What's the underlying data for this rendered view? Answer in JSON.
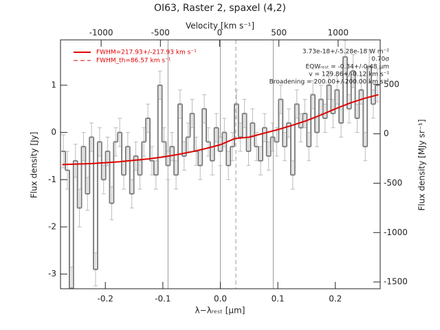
{
  "chart_data": {
    "type": "step",
    "title": "OI63, Raster 2, spaxel (4,2)",
    "xlabel": "λ−λᵣₑₛₜ [μm]",
    "ylabel": "Flux density [Jy]",
    "y2label": "Flux density [MJy sr⁻¹]",
    "x2label": "Velocity [km s⁻¹]",
    "xlim": [
      -0.278,
      0.278
    ],
    "ylim": [
      -3.31,
      1.96
    ],
    "y2lim": [
      -1569,
      951
    ],
    "x2lim": [
      -1343,
      1355
    ],
    "xticks": [
      -0.2,
      -0.1,
      {
        "value": 0,
        "label": "0.0"
      },
      0.1,
      0.2
    ],
    "yticks": [
      -3,
      -2,
      -1,
      0,
      1
    ],
    "y2ticks": [
      -1500,
      -1000,
      -500,
      0,
      500
    ],
    "x2ticks": [
      -1000,
      -500,
      0,
      500,
      1000
    ],
    "x": [
      -0.273,
      -0.266,
      -0.259,
      -0.252,
      -0.245,
      -0.238,
      -0.231,
      -0.224,
      -0.217,
      -0.21,
      -0.203,
      -0.196,
      -0.189,
      -0.182,
      -0.175,
      -0.168,
      -0.161,
      -0.154,
      -0.147,
      -0.14,
      -0.133,
      -0.126,
      -0.119,
      -0.112,
      -0.105,
      -0.098,
      -0.091,
      -0.084,
      -0.077,
      -0.07,
      -0.063,
      -0.056,
      -0.049,
      -0.042,
      -0.035,
      -0.028,
      -0.021,
      -0.014,
      -0.007,
      0,
      0.007,
      0.014,
      0.021,
      0.028,
      0.035,
      0.042,
      0.049,
      0.056,
      0.063,
      0.07,
      0.077,
      0.084,
      0.091,
      0.098,
      0.105,
      0.112,
      0.119,
      0.126,
      0.133,
      0.14,
      0.147,
      0.154,
      0.161,
      0.168,
      0.175,
      0.182,
      0.189,
      0.196,
      0.203,
      0.21,
      0.217,
      0.224,
      0.231,
      0.238,
      0.245,
      0.252,
      0.259,
      0.266,
      0.273
    ],
    "series": [
      {
        "name": "data",
        "color": "#808080",
        "values": [
          -0.4,
          -0.8,
          -3.3,
          -0.6,
          -1.6,
          -0.3,
          -1.3,
          -0.1,
          -2.9,
          -0.2,
          -1.0,
          -0.4,
          -1.5,
          -0.2,
          0.0,
          -0.9,
          -0.3,
          -1.3,
          -0.5,
          -0.9,
          -0.2,
          0.3,
          -0.6,
          -0.9,
          1.0,
          -0.2,
          -0.7,
          -0.3,
          -0.9,
          0.6,
          -0.5,
          -0.1,
          0.4,
          -0.4,
          -0.7,
          0.5,
          -0.2,
          -0.6,
          0.1,
          -0.4,
          0.0,
          -0.7,
          -0.3,
          0.6,
          -0.1,
          0.4,
          -0.4,
          0.2,
          -0.3,
          -0.6,
          0.1,
          -0.5,
          -0.1,
          -0.2,
          0.7,
          -0.3,
          0.2,
          -0.9,
          0.6,
          0.1,
          0.4,
          -0.3,
          0.8,
          0.0,
          0.7,
          0.3,
          1.0,
          0.4,
          0.9,
          0.2,
          1.6,
          0.5,
          1.3,
          0.3,
          0.9,
          -0.3,
          1.4,
          0.6,
          1.0
        ],
        "errors": [
          0.35,
          0.4,
          0.45,
          0.35,
          0.4,
          0.3,
          0.35,
          0.3,
          0.35,
          0.3,
          0.3,
          0.3,
          0.35,
          0.3,
          0.3,
          0.3,
          0.3,
          0.3,
          0.3,
          0.3,
          0.3,
          0.3,
          0.3,
          0.3,
          0.3,
          0.3,
          0.3,
          0.3,
          0.3,
          0.3,
          0.3,
          0.3,
          0.3,
          0.3,
          0.3,
          0.3,
          0.3,
          0.3,
          0.3,
          0.3,
          0.3,
          0.3,
          0.3,
          0.3,
          0.3,
          0.3,
          0.3,
          0.3,
          0.3,
          0.3,
          0.3,
          0.3,
          0.3,
          0.3,
          0.3,
          0.3,
          0.3,
          0.3,
          0.3,
          0.3,
          0.3,
          0.3,
          0.3,
          0.3,
          0.3,
          0.3,
          0.3,
          0.3,
          0.3,
          0.3,
          0.35,
          0.3,
          0.35,
          0.3,
          0.3,
          0.3,
          0.35,
          0.3,
          0.35
        ]
      }
    ],
    "fit": {
      "name": "FWHM=217.93+/-217.93 km s⁻¹",
      "color": "#e00000",
      "x": [
        -0.275,
        -0.25,
        -0.225,
        -0.2,
        -0.175,
        -0.15,
        -0.125,
        -0.1,
        -0.075,
        -0.05,
        -0.025,
        0,
        0.025,
        0.05,
        0.075,
        0.1,
        0.125,
        0.15,
        0.175,
        0.2,
        0.225,
        0.25,
        0.275
      ],
      "values": [
        -0.68,
        -0.67,
        -0.66,
        -0.64,
        -0.62,
        -0.59,
        -0.56,
        -0.52,
        -0.47,
        -0.41,
        -0.34,
        -0.26,
        -0.13,
        -0.1,
        -0.02,
        0.06,
        0.15,
        0.25,
        0.37,
        0.5,
        0.62,
        0.72,
        0.8
      ]
    },
    "fit_th_label": "FWHM_th=86.57 km s⁻¹",
    "vlines": [
      -0.091,
      0,
      0.092
    ],
    "dashed_vline": 0.027,
    "annotations": [
      "3.73e-18+/-5.28e-18 W m⁻²",
      "0.70σ",
      "EQWᵣₑₛₜ = -0.34+/-0.48 μm",
      "v = 129.86+/-0.12 km s⁻¹",
      "Broadening = 200.00+/-200.00 km s⁻¹"
    ]
  }
}
